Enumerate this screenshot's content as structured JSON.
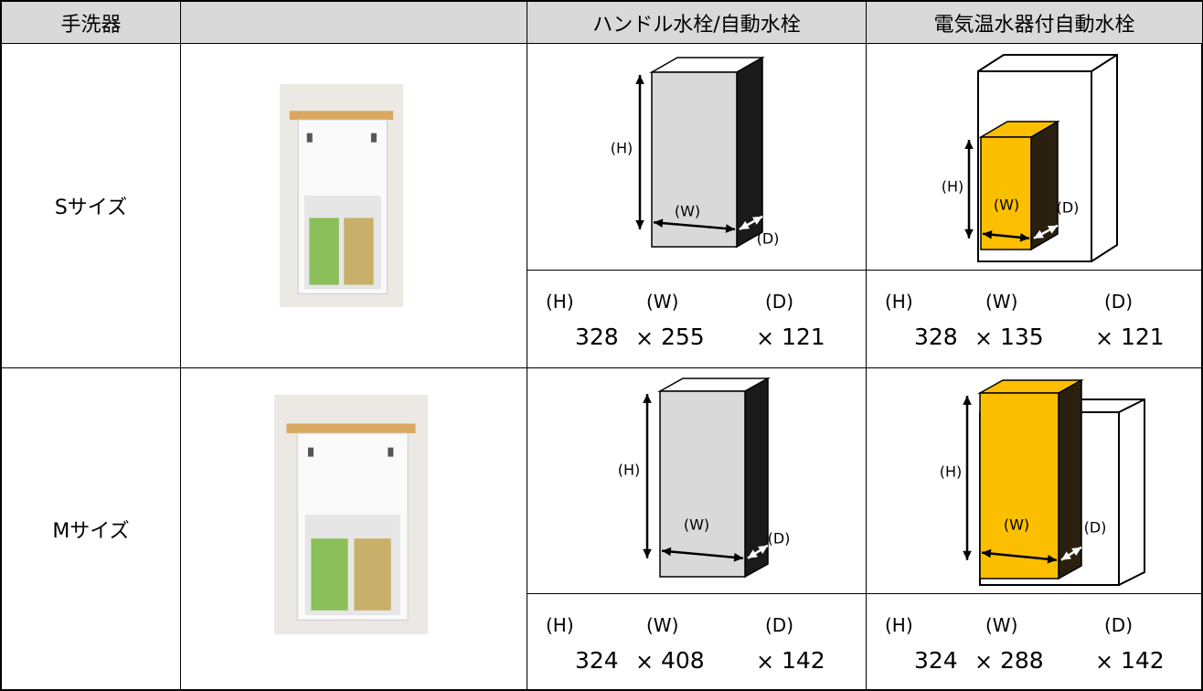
{
  "header": {
    "columns": [
      "手洗器",
      "ハンドル水栓/自動水栓",
      "電気温水器付自動水栓"
    ]
  },
  "rows": [
    {
      "size": "Sサイズ",
      "cells": [
        {
          "diagram": {
            "h": "(H)",
            "w": "(W)",
            "d": "(D)"
          },
          "dimensions": {
            "labels": [
              "(H)",
              "(W)",
              "(D)"
            ],
            "values": [
              328,
              255,
              121
            ],
            "separator": "×"
          }
        },
        {
          "diagram": {
            "h": "(H)",
            "w": "(W)",
            "d": "(D)"
          },
          "dimensions": {
            "labels": [
              "(H)",
              "(W)",
              "(D)"
            ],
            "values": [
              328,
              135,
              121
            ],
            "separator": "×"
          }
        }
      ]
    },
    {
      "size": "Mサイズ",
      "cells": [
        {
          "diagram": {
            "h": "(H)",
            "w": "(W)",
            "d": "(D)"
          },
          "dimensions": {
            "labels": [
              "(H)",
              "(W)",
              "(D)"
            ],
            "values": [
              324,
              408,
              142
            ],
            "separator": "×"
          }
        },
        {
          "diagram": {
            "h": "(H)",
            "w": "(W)",
            "d": "(D)"
          },
          "dimensions": {
            "labels": [
              "(H)",
              "(W)",
              "(D)"
            ],
            "values": [
              324,
              288,
              142
            ],
            "separator": "×"
          }
        }
      ]
    }
  ]
}
